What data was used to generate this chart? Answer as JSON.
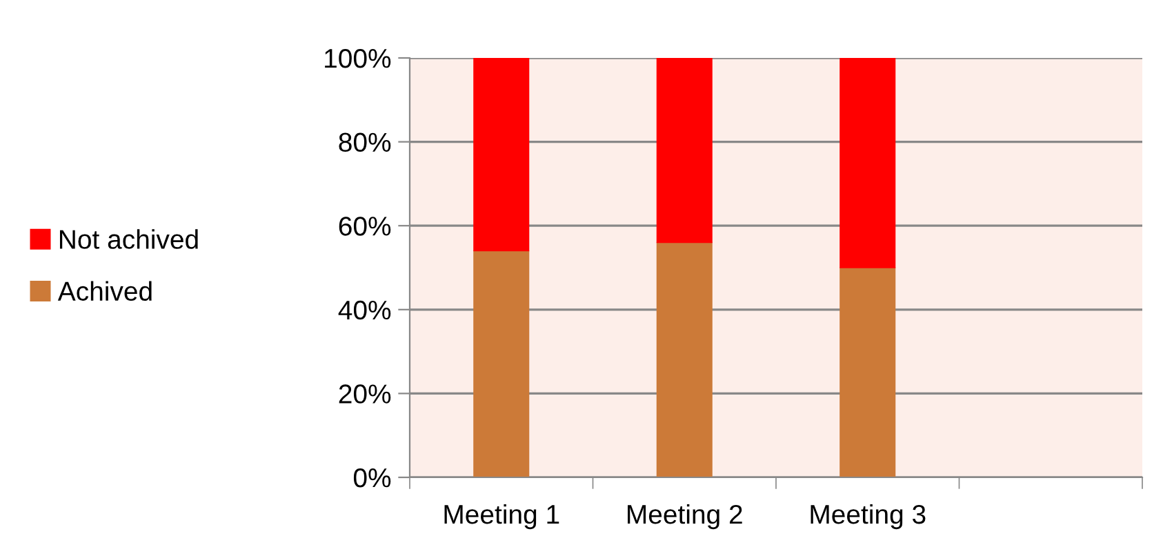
{
  "chart_data": {
    "type": "bar",
    "stacked": true,
    "categories": [
      "Meeting 1",
      "Meeting 2",
      "Meeting 3",
      null
    ],
    "series": [
      {
        "name": "Achived",
        "color": "#cc7a38",
        "values": [
          54,
          56,
          50,
          null
        ]
      },
      {
        "name": "Not achived",
        "color": "#ff0000",
        "values": [
          46,
          44,
          50,
          null
        ]
      }
    ],
    "ylim": [
      0,
      100
    ],
    "yticks": [
      {
        "value": 0,
        "label": "0%"
      },
      {
        "value": 20,
        "label": "20%"
      },
      {
        "value": 40,
        "label": "40%"
      },
      {
        "value": 60,
        "label": "60%"
      },
      {
        "value": 80,
        "label": "80%"
      },
      {
        "value": 100,
        "label": "100%"
      }
    ],
    "grid": "y",
    "legend": "left"
  }
}
